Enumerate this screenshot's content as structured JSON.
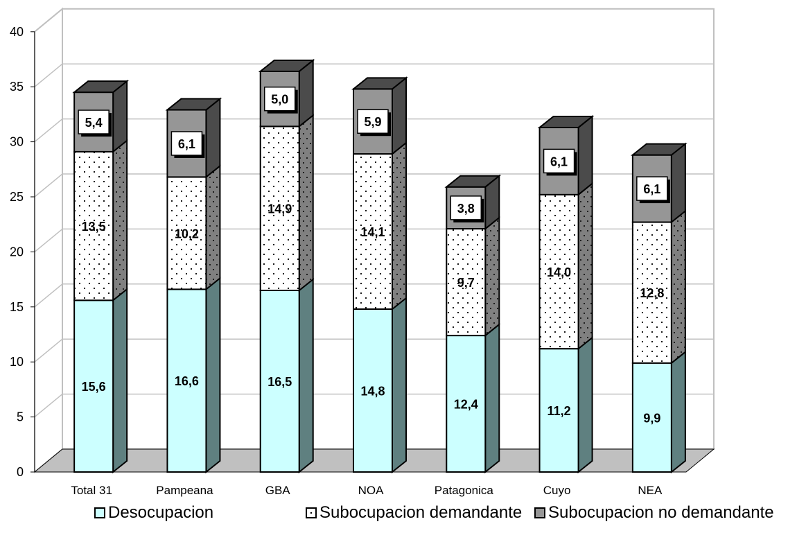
{
  "chart_data": {
    "type": "bar",
    "stacked": true,
    "style": "3d",
    "title": "",
    "xlabel": "",
    "ylabel": "",
    "ylim": [
      0,
      40
    ],
    "yticks": [
      "0",
      "5",
      "10",
      "15",
      "20",
      "25",
      "30",
      "35",
      "40"
    ],
    "grid": true,
    "legend_position": "bottom",
    "categories": [
      "Total 31",
      "Pampeana",
      "GBA",
      "NOA",
      "Patagonica",
      "Cuyo",
      "NEA"
    ],
    "series": [
      {
        "name": "Desocupacion",
        "values": [
          15.6,
          16.6,
          16.5,
          14.8,
          12.4,
          11.2,
          9.9
        ],
        "labels": [
          "15,6",
          "16,6",
          "16,5",
          "14,8",
          "12,4",
          "11,2",
          "9,9"
        ],
        "color": "#ccffff",
        "side_color": "#5f8080",
        "pattern": "solid"
      },
      {
        "name": "Subocupacion demandante",
        "values": [
          13.5,
          10.2,
          14.9,
          14.1,
          9.7,
          14.0,
          12.8
        ],
        "labels": [
          "13,5",
          "10,2",
          "14,9",
          "14,1",
          "9,7",
          "14,0",
          "12,8"
        ],
        "color": "#ffffff",
        "side_color": "#808080",
        "pattern": "dots"
      },
      {
        "name": "Subocupacion no demandante",
        "values": [
          5.4,
          6.1,
          5.0,
          5.9,
          3.8,
          6.1,
          6.1
        ],
        "labels": [
          "5,4",
          "6,1",
          "5,0",
          "5,9",
          "3,8",
          "6,1",
          "6,1"
        ],
        "color": "#969696",
        "side_color": "#4b4b4b",
        "pattern": "solid"
      }
    ]
  }
}
